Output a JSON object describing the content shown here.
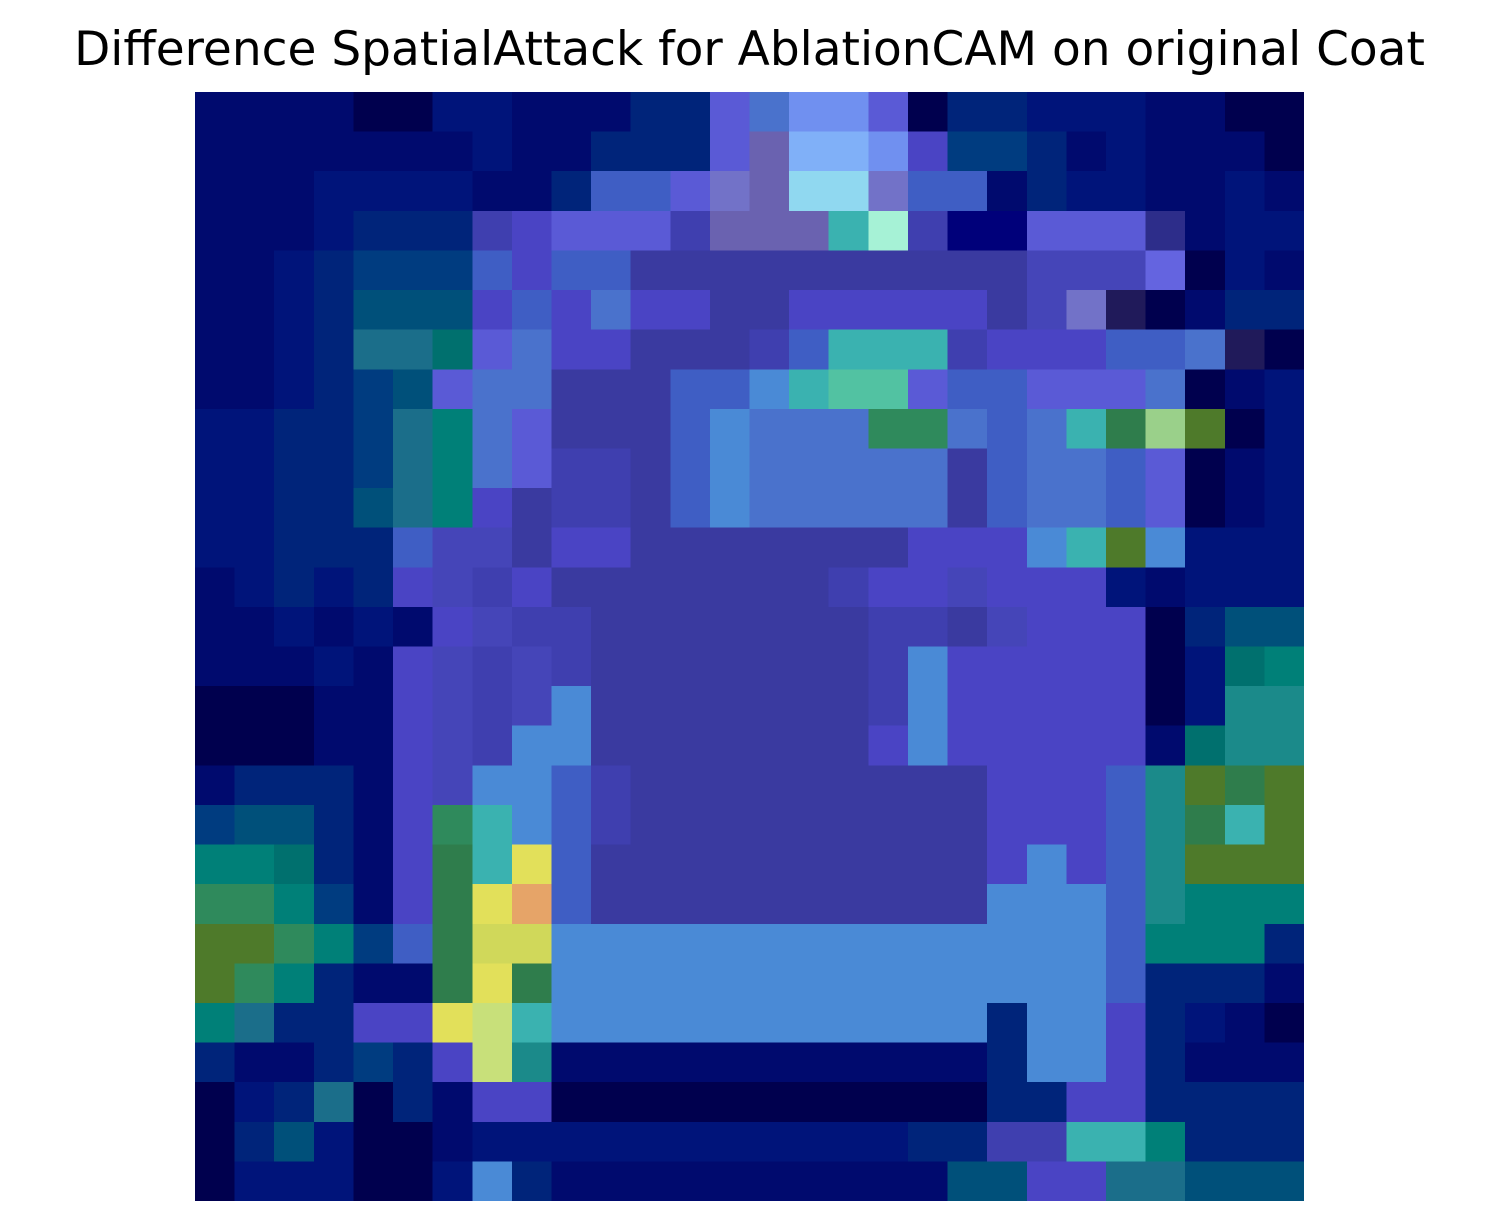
{
  "figure": {
    "title": "Difference SpatialAttack for AblationCAM on original Coat"
  },
  "image": {
    "description_name": "coat-heatmap-overlay",
    "grid": {
      "rows": 28,
      "cols": 28
    },
    "colormap": "jet-overlay",
    "palette": [
      "#00004e",
      "#00006a",
      "#000a78",
      "#001a7a",
      "#00266f",
      "#003c70",
      "#00576e",
      "#006e72",
      "#007b78",
      "#1b6e74",
      "#2f7d4c",
      "#4e7a2a",
      "#6f7a1a",
      "#857a08",
      "#1d1f8a",
      "#2d2d8a",
      "#353595",
      "#3a3aa0",
      "#3f3faf",
      "#4545b8",
      "#4a44c4",
      "#5050c8",
      "#5a5ad6",
      "#6464e0",
      "#3f5ec4",
      "#4a72cc",
      "#4a8ad6",
      "#5aa0e0",
      "#6ab4ea",
      "#76d0ee",
      "#8ae6ee",
      "#a6f2d6",
      "#3ab2b0",
      "#52c2a2",
      "#78d8b6",
      "#8cc27a",
      "#b2d06e",
      "#d0d85a",
      "#e2e05a",
      "#e6a468",
      "#e89a6a",
      "#6a62b0",
      "#7272c8",
      "#7090f0",
      "#80b0f8",
      "#403a7a",
      "#201a5a",
      "#10103a"
    ],
    "cells": [
      "1111002211133NMSSN03322211000",
      "1111111211333QUVVSJ4431211100",
      "1112222113KKQRUhhRKK13221121",
      "1112333HJQQQHPPUdfHFFQQQE1222",
      "1123444KJKKGGGGGGGGGGIIIO0211",
      "1123555JKJLJJGGJJJJJGIRB0133",
      "1123667NMJJGGGHKdddHJJJKKLB033",
      "112345NMMGGGKKZdeeNKKNNNM0123",
      "2233468MNGGGKZMMMaaMKMdcib0223",
      "2233468MNHHGKZMMMMMGKLMKN0123",
      "2233568JGHHGKZMMMMMGKLMKN0123",
      "22333KIIGJJGGGGGGGJJJZdbZ22",
      "12323JIHJGGGGGGGHJJIJJJ212",
      "112121JIHHGGGGGGGHHGIJJJ03552",
      "11121JIHIHGGGGGGGHZJJJJJ0278",
      "00011JIHIZGGGGGGGHZJJJJJ02995",
      "00011JIHZZGGGGGGGJZJJJJJ1799",
      "13331JIZZKHGGGGGGGGGJJJK9bcb",
      "45531JadZKHGGGGGGGGGJJJK9cdb",
      "88731Jcd.KGGGGGGGGGGJZJK9bbb",
      "aa841Jc.&KGGGGGGGGGGZZZK9888",
      "bba84KcnnZZZZZZZZZZZZZZK8883",
      "ba8311c.cZZZZZZZZZZZZZZK3331",
      "8633JJ.gdZZZZZZZZZZZ3ZZJ3210",
      "311343Jg9111111111113ZZJ3111",
      "0236031JJ0000000000033JJ3333",
      "03520012222222222233HHdd8333",
      "0222002Z3111111111155JJ66555"
    ]
  }
}
